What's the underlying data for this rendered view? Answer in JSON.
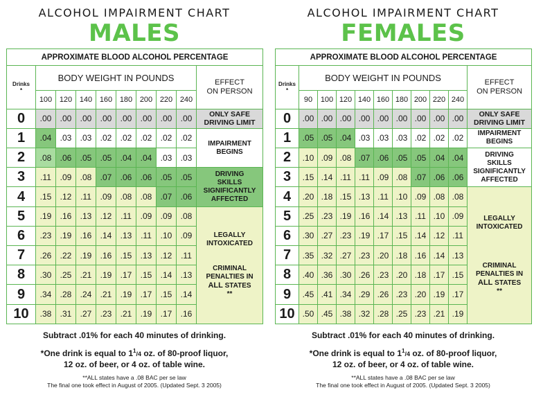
{
  "males": {
    "chart_title": "ALCOHOL IMPAIRMENT CHART",
    "sex_title": "MALES",
    "approx_header": "APPROXIMATE BLOOD ALCOHOL PERCENTAGE",
    "drinks_header": "Drinks",
    "drinks_star": "*",
    "bw_header": "BODY WEIGHT IN POUNDS",
    "effect_header_1": "EFFECT",
    "effect_header_2": "ON PERSON",
    "weights": [
      "100",
      "120",
      "140",
      "160",
      "180",
      "200",
      "220",
      "240"
    ],
    "rows": [
      {
        "drinks": "0",
        "values": [
          ".00",
          ".00",
          ".00",
          ".00",
          ".00",
          ".00",
          ".00",
          ".00"
        ]
      },
      {
        "drinks": "1",
        "values": [
          ".04",
          ".03",
          ".03",
          ".02",
          ".02",
          ".02",
          ".02",
          ".02"
        ]
      },
      {
        "drinks": "2",
        "values": [
          ".08",
          ".06",
          ".05",
          ".05",
          ".04",
          ".04",
          ".03",
          ".03"
        ]
      },
      {
        "drinks": "3",
        "values": [
          ".11",
          ".09",
          ".08",
          ".07",
          ".06",
          ".06",
          ".05",
          ".05"
        ]
      },
      {
        "drinks": "4",
        "values": [
          ".15",
          ".12",
          ".11",
          ".09",
          ".08",
          ".08",
          ".07",
          ".06"
        ]
      },
      {
        "drinks": "5",
        "values": [
          ".19",
          ".16",
          ".13",
          ".12",
          ".11",
          ".09",
          ".09",
          ".08"
        ]
      },
      {
        "drinks": "6",
        "values": [
          ".23",
          ".19",
          ".16",
          ".14",
          ".13",
          ".11",
          ".10",
          ".09"
        ]
      },
      {
        "drinks": "7",
        "values": [
          ".26",
          ".22",
          ".19",
          ".16",
          ".15",
          ".13",
          ".12",
          ".11"
        ]
      },
      {
        "drinks": "8",
        "values": [
          ".30",
          ".25",
          ".21",
          ".19",
          ".17",
          ".15",
          ".14",
          ".13"
        ]
      },
      {
        "drinks": "9",
        "values": [
          ".34",
          ".28",
          ".24",
          ".21",
          ".19",
          ".17",
          ".15",
          ".14"
        ]
      },
      {
        "drinks": "10",
        "values": [
          ".38",
          ".31",
          ".27",
          ".23",
          ".21",
          ".19",
          ".17",
          ".16"
        ]
      }
    ],
    "effects": {
      "safe_1": "ONLY SAFE",
      "safe_2": "DRIVING LIMIT",
      "impair_1": "IMPAIRMENT",
      "impair_2": "BEGINS",
      "driving_1": "DRIVING",
      "driving_2": "SKILLS",
      "driving_3": "SIGNIFICANTLY",
      "driving_4": "AFFECTED",
      "legal_1": "LEGALLY",
      "legal_2": "INTOXICATED",
      "crim_1": "CRIMINAL",
      "crim_2": "PENALTIES IN",
      "crim_3a": "ALL",
      "crim_3b": " STATES",
      "crim_4": "**"
    },
    "foot_subtract": "Subtract .01% for each 40 minutes of drinking.",
    "foot_drink_1a": "*One drink is equal to 1",
    "foot_drink_sup": "1",
    "foot_drink_sub": "/4",
    "foot_drink_1b": " oz. of 80-proof liquor,",
    "foot_drink_2": "12 oz. of beer, or 4 oz. of table wine.",
    "foot_law_1": "**ALL states have a .08 BAC per se law",
    "foot_law_2": "The final one took effect in August of 2005. (Updated Sept. 3 2005)"
  },
  "females": {
    "chart_title": "ALCOHOL IMPAIRMENT CHART",
    "sex_title": "FEMALES",
    "approx_header": "APPROXIMATE BLOOD ALCOHOL PERCENTAGE",
    "drinks_header": "Drinks",
    "drinks_star": "*",
    "bw_header": "BODY WEIGHT IN POUNDS",
    "effect_header_1": "EFFECT",
    "effect_header_2": "ON PERSON",
    "weights": [
      "90",
      "100",
      "120",
      "140",
      "160",
      "180",
      "200",
      "220",
      "240"
    ],
    "rows": [
      {
        "drinks": "0",
        "values": [
          ".00",
          ".00",
          ".00",
          ".00",
          ".00",
          ".00",
          ".00",
          ".00",
          ".00"
        ]
      },
      {
        "drinks": "1",
        "values": [
          ".05",
          ".05",
          ".04",
          ".03",
          ".03",
          ".03",
          ".02",
          ".02",
          ".02"
        ]
      },
      {
        "drinks": "2",
        "values": [
          ".10",
          ".09",
          ".08",
          ".07",
          ".06",
          ".05",
          ".05",
          ".04",
          ".04"
        ]
      },
      {
        "drinks": "3",
        "values": [
          ".15",
          ".14",
          ".11",
          ".11",
          ".09",
          ".08",
          ".07",
          ".06",
          ".06"
        ]
      },
      {
        "drinks": "4",
        "values": [
          ".20",
          ".18",
          ".15",
          ".13",
          ".11",
          ".10",
          ".09",
          ".08",
          ".08"
        ]
      },
      {
        "drinks": "5",
        "values": [
          ".25",
          ".23",
          ".19",
          ".16",
          ".14",
          ".13",
          ".11",
          ".10",
          ".09"
        ]
      },
      {
        "drinks": "6",
        "values": [
          ".30",
          ".27",
          ".23",
          ".19",
          ".17",
          ".15",
          ".14",
          ".12",
          ".11"
        ]
      },
      {
        "drinks": "7",
        "values": [
          ".35",
          ".32",
          ".27",
          ".23",
          ".20",
          ".18",
          ".16",
          ".14",
          ".13"
        ]
      },
      {
        "drinks": "8",
        "values": [
          ".40",
          ".36",
          ".30",
          ".26",
          ".23",
          ".20",
          ".18",
          ".17",
          ".15"
        ]
      },
      {
        "drinks": "9",
        "values": [
          ".45",
          ".41",
          ".34",
          ".29",
          ".26",
          ".23",
          ".20",
          ".19",
          ".17"
        ]
      },
      {
        "drinks": "10",
        "values": [
          ".50",
          ".45",
          ".38",
          ".32",
          ".28",
          ".25",
          ".23",
          ".21",
          ".19"
        ]
      }
    ],
    "effects": {
      "safe_1": "ONLY SAFE",
      "safe_2": "DRIVING LIMIT",
      "impair_1": "IMPAIRMENT",
      "impair_2": "BEGINS",
      "driving_1": "DRIVING",
      "driving_2": "SKILLS",
      "driving_3": "SIGNIFICANTLY",
      "driving_4": "AFFECTED",
      "legal_1": "LEGALLY",
      "legal_2": "INTOXICATED",
      "crim_1": "CRIMINAL",
      "crim_2": "PENALTIES IN",
      "crim_3a": "ALL",
      "crim_3b": " STATES",
      "crim_4": "**"
    },
    "foot_subtract": "Subtract .01% for each 40 minutes of drinking.",
    "foot_drink_1a": "*One drink is equal to 1",
    "foot_drink_sup": "1",
    "foot_drink_sub": "/4",
    "foot_drink_1b": " oz. of 80-proof liquor,",
    "foot_drink_2": "12 oz. of beer, or 4 oz. of table wine.",
    "foot_law_1": "**ALL states have a .08 BAC per se law",
    "foot_law_2": "The final one took effect in August of 2005. (Updated Sept. 3 2005)"
  },
  "colors": {
    "title_green": "#5cc24a",
    "border_green": "#5ab552",
    "gray": "#d9d9d9",
    "light_green": "#a9dca0",
    "mid_green": "#86c77c",
    "pale_yellow": "#eef3c7"
  }
}
